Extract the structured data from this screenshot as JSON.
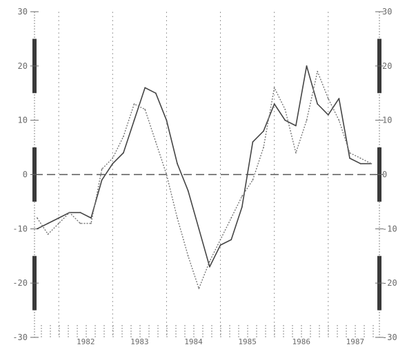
{
  "chart_data": {
    "type": "line",
    "title": "",
    "xlabel": "",
    "ylabel": "",
    "ylim": [
      -30,
      30
    ],
    "xlim": [
      1981.55,
      1987.95
    ],
    "yticks": [
      30,
      20,
      10,
      0,
      -10,
      -20,
      -30
    ],
    "year_labels": [
      "1982",
      "1983",
      "1984",
      "1985",
      "1986",
      "1987"
    ],
    "year_label_x": [
      1982.5,
      1983.5,
      1984.5,
      1985.5,
      1986.5,
      1987.5
    ],
    "year_dividers": [
      1982,
      1983,
      1984,
      1985,
      1986,
      1987
    ],
    "zero_line": 0,
    "grid": false,
    "series": [
      {
        "style": "solid",
        "x": [
          1981.6,
          1981.8,
          1982.0,
          1982.2,
          1982.4,
          1982.6,
          1982.8,
          1983.0,
          1983.2,
          1983.4,
          1983.6,
          1983.8,
          1984.0,
          1984.2,
          1984.4,
          1984.6,
          1984.8,
          1985.0,
          1985.2,
          1985.4,
          1985.6,
          1985.8,
          1986.0,
          1986.2,
          1986.4,
          1986.6,
          1986.8,
          1987.0,
          1987.2,
          1987.4,
          1987.6,
          1987.8
        ],
        "values": [
          -10,
          -9,
          -8,
          -7,
          -7,
          -8,
          -1,
          2,
          4,
          10,
          16,
          15,
          10,
          2,
          -3,
          -10,
          -17,
          -13,
          -12,
          -6,
          6,
          8,
          13,
          10,
          9,
          20,
          13,
          11,
          14,
          3,
          2,
          2
        ]
      },
      {
        "style": "dotted",
        "x": [
          1981.6,
          1981.8,
          1982.0,
          1982.2,
          1982.4,
          1982.6,
          1982.8,
          1983.0,
          1983.2,
          1983.4,
          1983.6,
          1983.8,
          1984.0,
          1984.2,
          1984.4,
          1984.6,
          1984.8,
          1985.0,
          1985.2,
          1985.4,
          1985.6,
          1985.8,
          1986.0,
          1986.2,
          1986.4,
          1986.6,
          1986.8,
          1987.0,
          1987.2,
          1987.4,
          1987.6,
          1987.8
        ],
        "values": [
          -8,
          -11,
          -9,
          -7,
          -9,
          -9,
          1,
          3,
          7,
          13,
          12,
          6,
          0,
          -8,
          -15,
          -21,
          -16,
          -12,
          -8,
          -4,
          -1,
          5,
          16,
          12,
          4,
          10,
          19,
          14,
          10,
          4,
          3,
          2
        ]
      }
    ]
  }
}
